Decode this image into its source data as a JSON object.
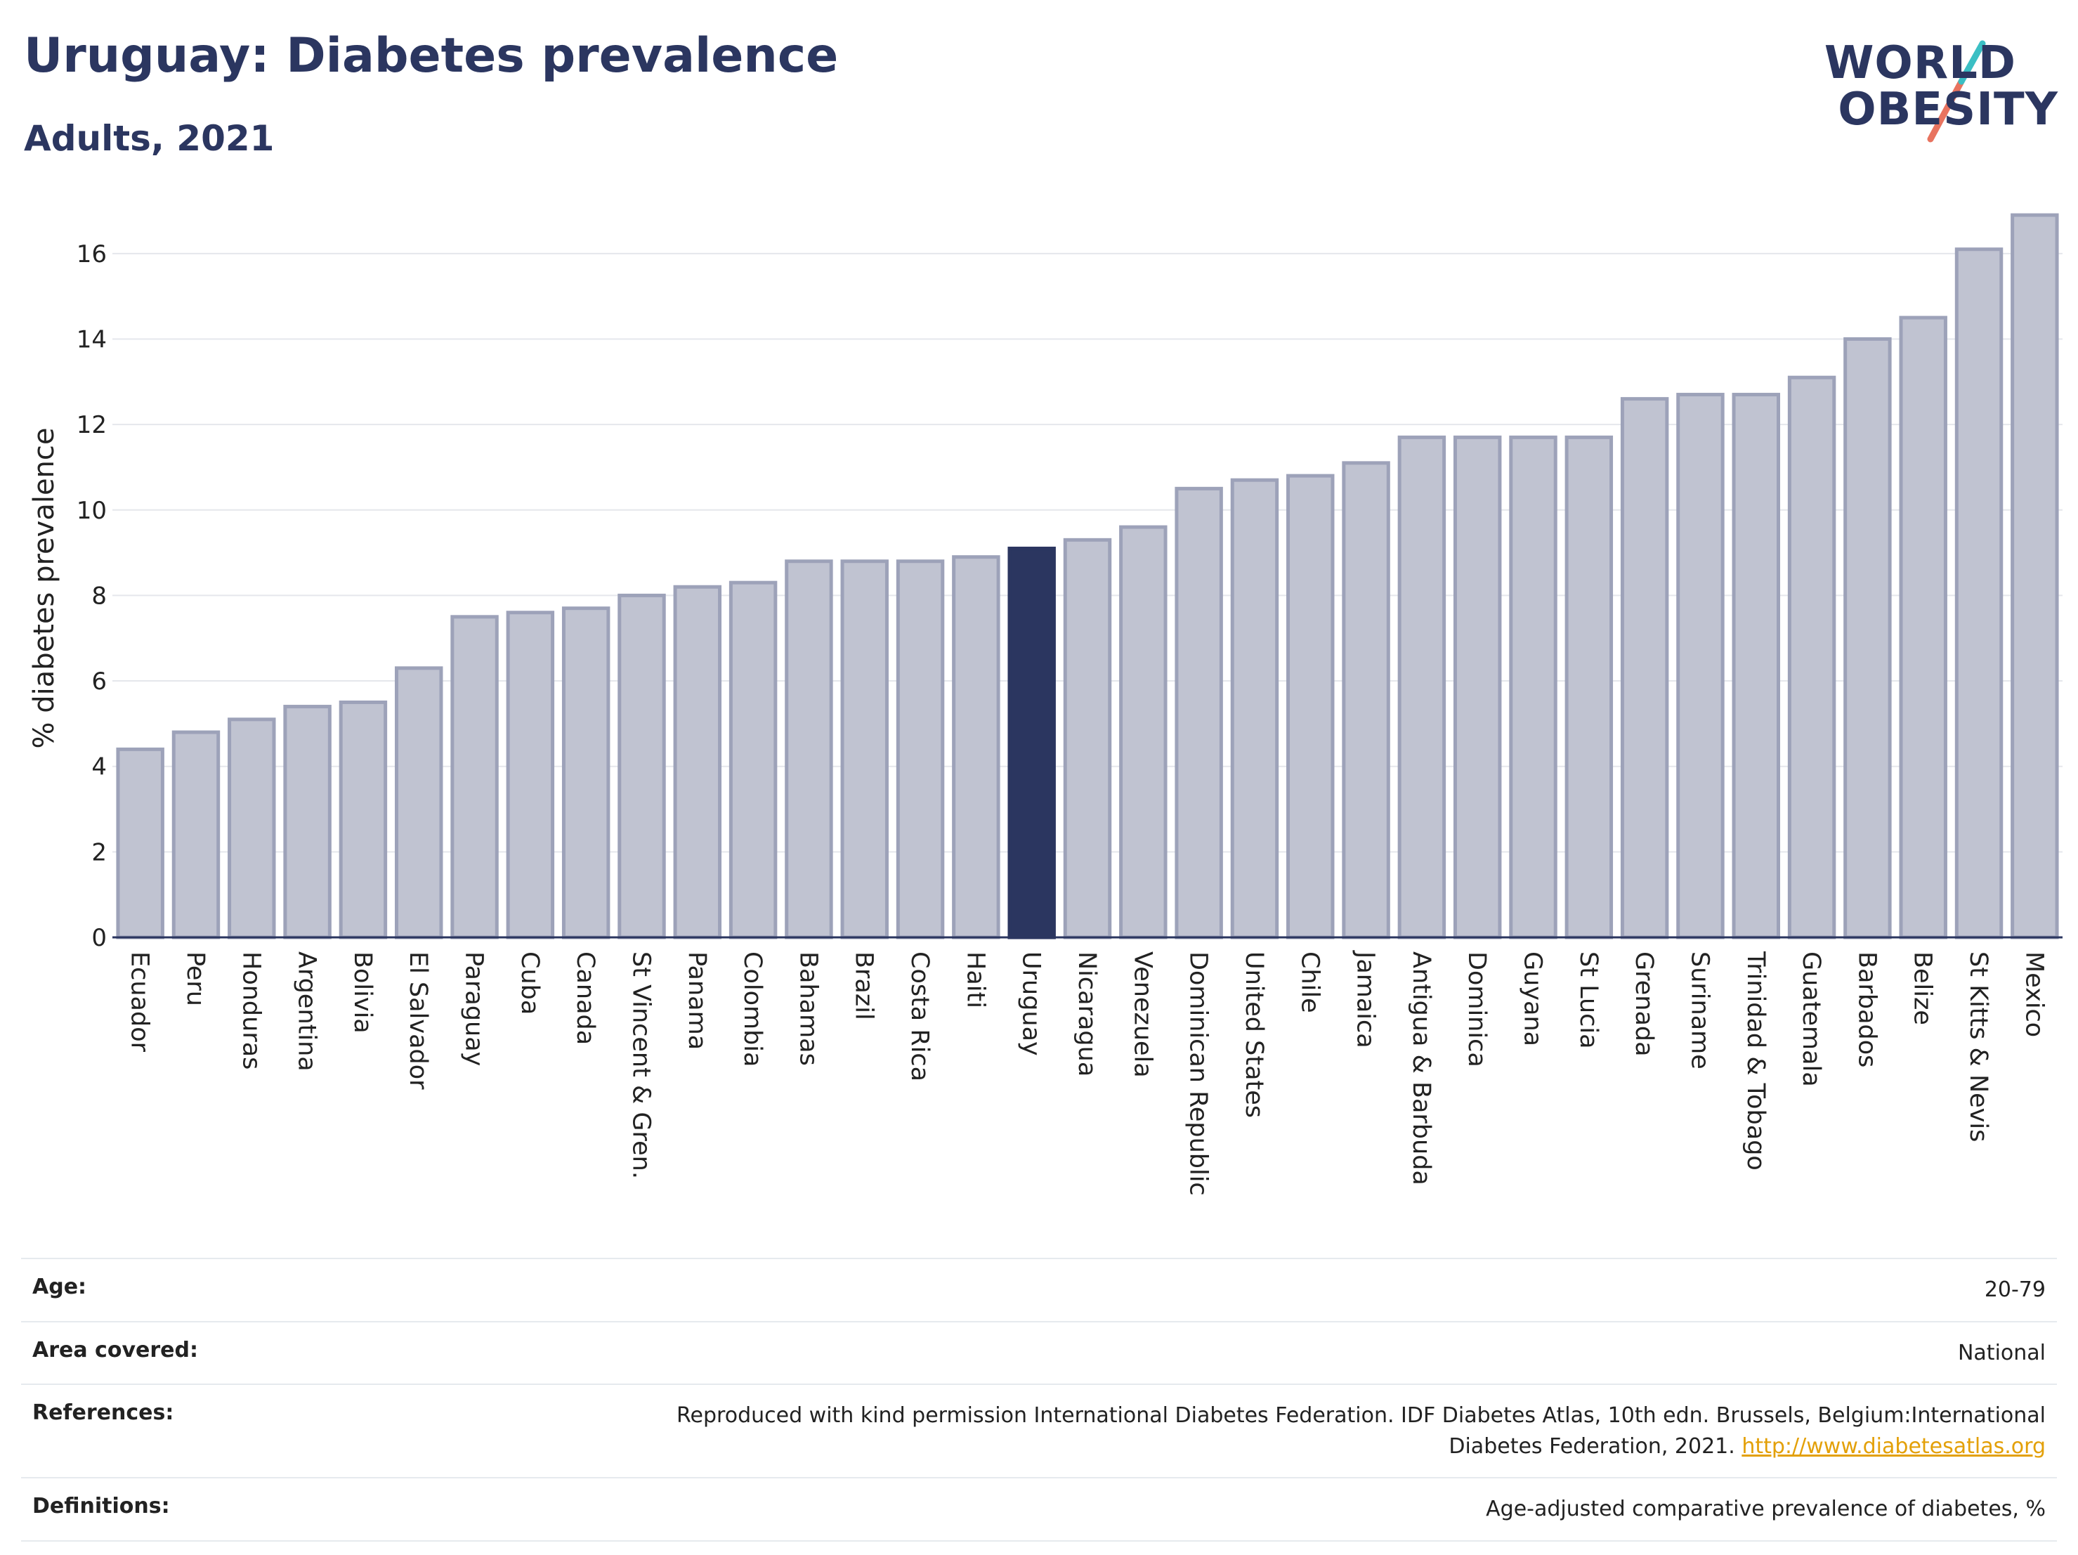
{
  "header": {
    "title": "Uruguay: Diabetes prevalence",
    "subtitle": "Adults, 2021"
  },
  "logo": {
    "line1": "WORLD",
    "line2": "OBESITY",
    "accent_teal": "#3bbfc4",
    "accent_red": "#e8735f"
  },
  "colors": {
    "bar": "#c0c3d1",
    "bar_border": "#9da2b9",
    "highlight": "#2b3660",
    "axis": "#2b3660",
    "grid": "#e5e7ec"
  },
  "chart_data": {
    "type": "bar",
    "ylabel": "% diabetes prevalence",
    "ylim": [
      0,
      17
    ],
    "yticks": [
      0,
      2,
      4,
      6,
      8,
      10,
      12,
      14,
      16
    ],
    "grid": true,
    "highlight": "Uruguay",
    "categories": [
      "Ecuador",
      "Peru",
      "Honduras",
      "Argentina",
      "Bolivia",
      "El Salvador",
      "Paraguay",
      "Cuba",
      "Canada",
      "St Vincent & Gren.",
      "Panama",
      "Colombia",
      "Bahamas",
      "Brazil",
      "Costa Rica",
      "Haiti",
      "Uruguay",
      "Nicaragua",
      "Venezuela",
      "Dominican Republic",
      "United States",
      "Chile",
      "Jamaica",
      "Antigua & Barbuda",
      "Dominica",
      "Guyana",
      "St Lucia",
      "Grenada",
      "Suriname",
      "Trinidad & Tobago",
      "Guatemala",
      "Barbados",
      "Belize",
      "St Kitts & Nevis",
      "Mexico"
    ],
    "values": [
      4.4,
      4.8,
      5.1,
      5.4,
      5.5,
      6.3,
      7.5,
      7.6,
      7.7,
      8.0,
      8.2,
      8.3,
      8.8,
      8.8,
      8.8,
      8.9,
      9.1,
      9.3,
      9.6,
      10.5,
      10.7,
      10.8,
      11.1,
      11.7,
      11.7,
      11.7,
      11.7,
      12.6,
      12.7,
      12.7,
      13.1,
      14.0,
      14.5,
      16.1,
      16.9
    ]
  },
  "info": {
    "age": {
      "label": "Age:",
      "value": "20-79"
    },
    "area": {
      "label": "Area covered:",
      "value": "National"
    },
    "references": {
      "label": "References:",
      "value": "Reproduced with kind permission International Diabetes Federation.  IDF Diabetes Atlas, 10th edn. Brussels, Belgium:International Diabetes Federation, 2021.",
      "link": "http://www.diabetesatlas.org"
    },
    "definitions": {
      "label": "Definitions:",
      "value": "Age-adjusted comparative prevalence of diabetes, %"
    }
  }
}
